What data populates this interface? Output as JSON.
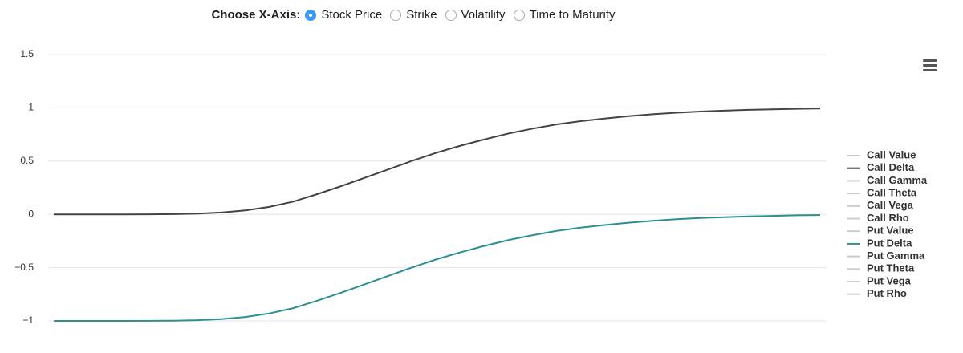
{
  "controls": {
    "label": "Choose X-Axis:",
    "options": [
      "Stock Price",
      "Strike",
      "Volatility",
      "Time to Maturity"
    ],
    "selected": 0
  },
  "chart_data": {
    "type": "line",
    "ylim": [
      -1,
      1.5
    ],
    "yticks": [
      1.5,
      1,
      0.5,
      0,
      {
        "value": -0.5,
        "label": "−0.5"
      },
      {
        "value": -1,
        "label": "−1"
      }
    ],
    "grid": true,
    "legend": "right",
    "series": [
      {
        "name": "Call Value",
        "color": "#cccccc",
        "visible": false
      },
      {
        "name": "Call Delta",
        "color": "#434348",
        "visible": true,
        "values": [
          0,
          0,
          0,
          0,
          0.001,
          0.002,
          0.007,
          0.017,
          0.037,
          0.07,
          0.12,
          0.19,
          0.265,
          0.345,
          0.425,
          0.505,
          0.58,
          0.645,
          0.705,
          0.76,
          0.805,
          0.845,
          0.875,
          0.9,
          0.922,
          0.94,
          0.954,
          0.965,
          0.974,
          0.981,
          0.986,
          0.991,
          0.994
        ]
      },
      {
        "name": "Call Gamma",
        "color": "#cccccc",
        "visible": false
      },
      {
        "name": "Call Theta",
        "color": "#cccccc",
        "visible": false
      },
      {
        "name": "Call Vega",
        "color": "#cccccc",
        "visible": false
      },
      {
        "name": "Call Rho",
        "color": "#cccccc",
        "visible": false
      },
      {
        "name": "Put Value",
        "color": "#cccccc",
        "visible": false
      },
      {
        "name": "Put Delta",
        "color": "#2b908f",
        "visible": true,
        "values": [
          -1,
          -1,
          -1,
          -1,
          -0.999,
          -0.998,
          -0.993,
          -0.983,
          -0.963,
          -0.93,
          -0.88,
          -0.81,
          -0.735,
          -0.655,
          -0.575,
          -0.495,
          -0.42,
          -0.355,
          -0.295,
          -0.24,
          -0.195,
          -0.155,
          -0.125,
          -0.1,
          -0.078,
          -0.06,
          -0.046,
          -0.035,
          -0.026,
          -0.019,
          -0.014,
          -0.009,
          -0.006
        ]
      },
      {
        "name": "Put Gamma",
        "color": "#cccccc",
        "visible": false
      },
      {
        "name": "Put Theta",
        "color": "#cccccc",
        "visible": false
      },
      {
        "name": "Put Vega",
        "color": "#cccccc",
        "visible": false
      },
      {
        "name": "Put Rho",
        "color": "#cccccc",
        "visible": false
      }
    ]
  }
}
